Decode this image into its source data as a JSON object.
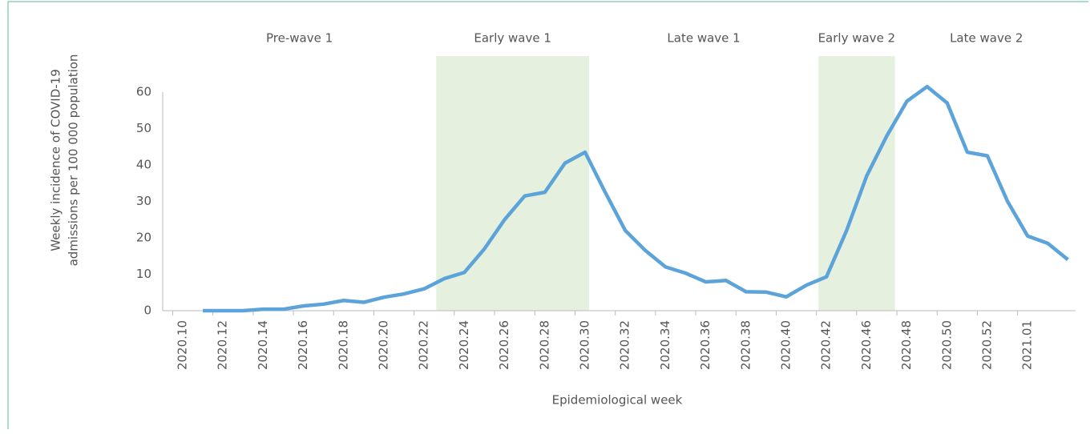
{
  "chart_data": {
    "type": "line",
    "y_label": [
      "Weekly incidence of COVID-19",
      "admissions per 100 000 population"
    ],
    "x_label": "Epidemiological week",
    "categories": [
      "2020.10",
      null,
      "2020.12",
      null,
      "2020.14",
      null,
      "2020.16",
      null,
      "2020.18",
      null,
      "2020.20",
      null,
      "2020.22",
      null,
      "2020.24",
      null,
      "2020.26",
      null,
      "2020.28",
      null,
      "2020.30",
      null,
      "2020.32",
      null,
      "2020.34",
      null,
      "2020.36",
      null,
      "2020.38",
      null,
      "2020.40",
      null,
      "2020.42",
      null,
      "2020.46",
      null,
      "2020.48",
      null,
      "2020.50",
      null,
      "2020.52",
      null,
      "2021.01",
      null,
      null
    ],
    "series": [
      {
        "name": "Weekly incidence",
        "color": "#5ba3d9",
        "values": [
          null,
          0,
          0,
          0,
          0.4,
          0.4,
          1.3,
          1.8,
          2.8,
          2.3,
          3.7,
          4.6,
          6.0,
          8.8,
          10.5,
          17,
          25,
          31.5,
          32.5,
          40.5,
          43.5,
          32.5,
          22,
          16.5,
          12,
          10.3,
          7.9,
          8.3,
          5.2,
          5.1,
          3.8,
          7,
          9.3,
          22,
          37,
          48,
          57.5,
          61.5,
          57,
          43.5,
          42.5,
          30,
          20.5,
          18.5,
          14
        ]
      }
    ],
    "periods": [
      {
        "label": "Pre-wave 1",
        "start": -1,
        "end": 12.6,
        "shaded": false
      },
      {
        "label": "Early wave 1",
        "start": 12.6,
        "end": 20.2,
        "shaded": true
      },
      {
        "label": "Late wave 1",
        "start": 20.2,
        "end": 31.6,
        "shaded": false
      },
      {
        "label": "Early wave 2",
        "start": 31.6,
        "end": 35.4,
        "shaded": true
      },
      {
        "label": "Late wave 2",
        "start": 35.4,
        "end": 44.5,
        "shaded": false
      }
    ],
    "shade_color": "#e6f0df",
    "ylim": [
      0,
      60
    ],
    "yticks": [
      0,
      10,
      20,
      30,
      40,
      50,
      60
    ],
    "grid": false
  }
}
